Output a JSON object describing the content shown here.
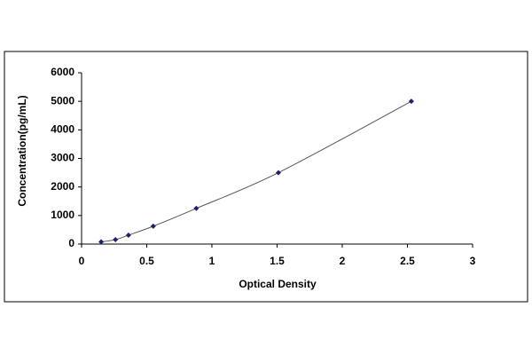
{
  "chart_data": {
    "type": "line",
    "x_label": "Optical Density",
    "y_label": "Concentration(pg/mL)",
    "series": [
      {
        "color": "#1f1f6b",
        "x": [
          0.15,
          0.26,
          0.36,
          0.55,
          0.88,
          1.51,
          2.53
        ],
        "values": [
          78,
          156,
          312,
          625,
          1250,
          2500,
          5000
        ]
      }
    ],
    "xlim": [
      0,
      3
    ],
    "xticks": [
      0,
      0.5,
      1,
      1.5,
      2,
      2.5,
      3
    ],
    "ylim": [
      0,
      6000
    ],
    "yticks": [
      0,
      1000,
      2000,
      3000,
      4000,
      5000,
      6000
    ],
    "grid": false
  }
}
